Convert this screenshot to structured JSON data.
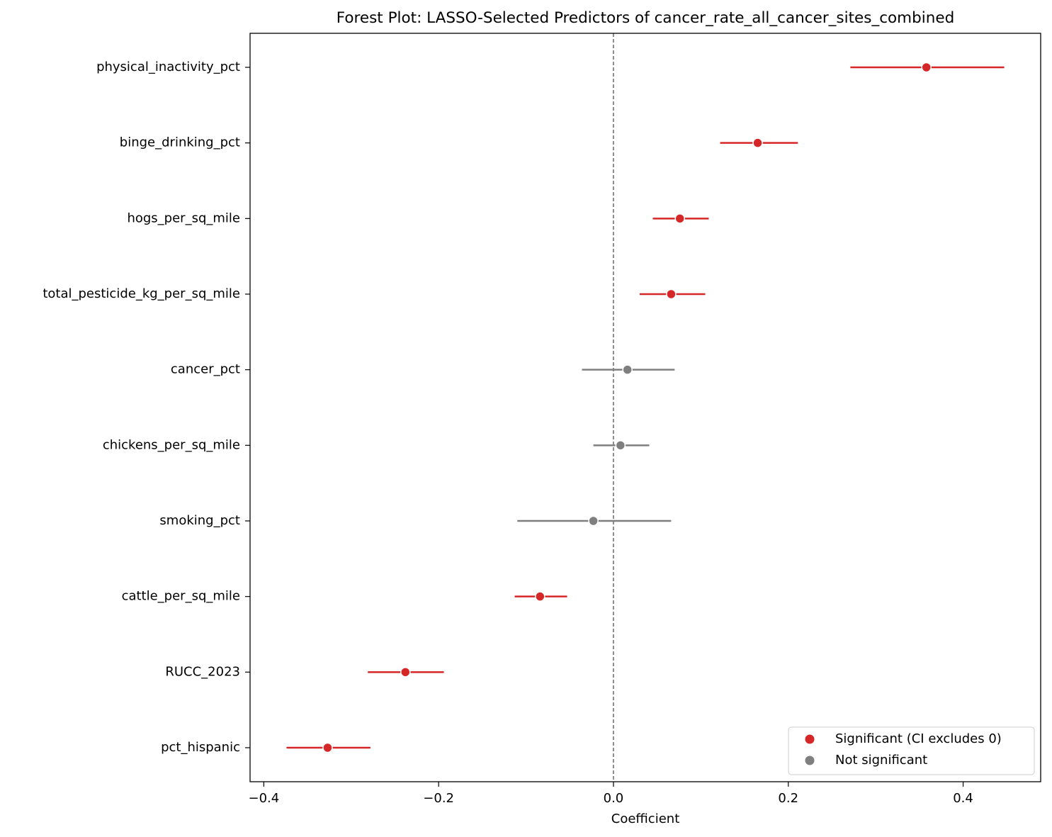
{
  "chart_data": {
    "type": "forest",
    "title": "Forest Plot: LASSO-Selected Predictors of cancer_rate_all_cancer_sites_combined",
    "x_label": "Coefficient",
    "categories": [
      "physical_inactivity_pct",
      "binge_drinking_pct",
      "hogs_per_sq_mile",
      "total_pesticide_kg_per_sq_mile",
      "cancer_pct",
      "chickens_per_sq_mile",
      "smoking_pct",
      "cattle_per_sq_mile",
      "RUCC_2023",
      "pct_hispanic"
    ],
    "series": [
      {
        "name": "Significant (CI excludes 0)",
        "color": "#d62728",
        "values": [
          0.358,
          0.165,
          0.076,
          0.066,
          null,
          null,
          null,
          -0.084,
          -0.238,
          -0.327
        ],
        "ci_low": [
          0.271,
          0.122,
          0.045,
          0.03,
          null,
          null,
          null,
          -0.113,
          -0.281,
          -0.374
        ],
        "ci_high": [
          0.447,
          0.211,
          0.109,
          0.105,
          null,
          null,
          null,
          -0.053,
          -0.194,
          -0.278
        ]
      },
      {
        "name": "Not significant",
        "color": "#7f7f7f",
        "values": [
          null,
          null,
          null,
          null,
          0.016,
          0.008,
          -0.023,
          null,
          null,
          null
        ],
        "ci_low": [
          null,
          null,
          null,
          null,
          -0.036,
          -0.023,
          -0.11,
          null,
          null,
          null
        ],
        "ci_high": [
          null,
          null,
          null,
          null,
          0.07,
          0.041,
          0.066,
          null,
          null,
          null
        ]
      }
    ],
    "xlim": [
      -0.4157,
      0.4887
    ],
    "xticks": [
      {
        "value": -0.4,
        "label": "−0.4"
      },
      {
        "value": -0.2,
        "label": "−0.2"
      },
      {
        "value": 0.0,
        "label": "0.0"
      },
      0.2,
      0.4
    ],
    "reference_line": 0,
    "legend": "lower right"
  }
}
